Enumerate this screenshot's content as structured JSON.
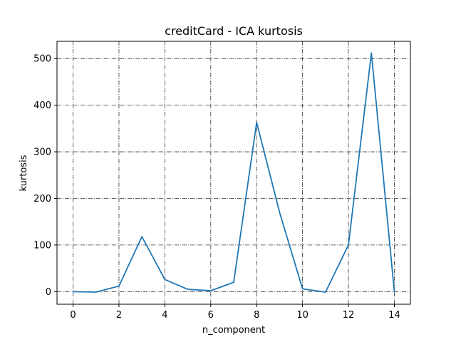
{
  "chart_data": {
    "type": "line",
    "title": "creditCard - ICA kurtosis",
    "xlabel": "n_component",
    "ylabel": "kurtosis",
    "xlim": [
      -0.7,
      14.7
    ],
    "ylim": [
      -27,
      537
    ],
    "xticks": [
      0,
      2,
      4,
      6,
      8,
      10,
      12,
      14
    ],
    "yticks": [
      0,
      100,
      200,
      300,
      400,
      500
    ],
    "grid": true,
    "series": [
      {
        "color": "#1f77b4",
        "x": [
          0,
          1,
          2,
          3,
          4,
          5,
          6,
          7,
          8,
          9,
          10,
          11,
          12,
          13,
          14
        ],
        "y": [
          0,
          -1,
          12,
          118,
          26,
          5,
          2,
          20,
          363,
          170,
          6,
          -1,
          100,
          512,
          0
        ]
      }
    ]
  }
}
